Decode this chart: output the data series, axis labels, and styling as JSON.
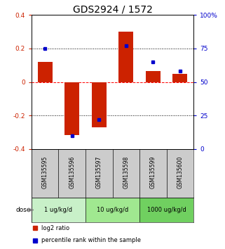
{
  "title": "GDS2924 / 1572",
  "samples": [
    "GSM135595",
    "GSM135596",
    "GSM135597",
    "GSM135598",
    "GSM135599",
    "GSM135600"
  ],
  "log2_ratio": [
    0.12,
    -0.315,
    -0.27,
    0.3,
    0.065,
    0.05
  ],
  "percentile_rank": [
    75,
    10,
    22,
    77,
    65,
    58
  ],
  "dose_groups": [
    {
      "label": "1 ug/kg/d",
      "start": 0,
      "end": 2,
      "color": "#c8f0c8"
    },
    {
      "label": "10 ug/kg/d",
      "start": 2,
      "end": 4,
      "color": "#a0e890"
    },
    {
      "label": "1000 ug/kg/d",
      "start": 4,
      "end": 6,
      "color": "#70d060"
    }
  ],
  "ylim_left": [
    -0.4,
    0.4
  ],
  "ylim_right": [
    0,
    100
  ],
  "bar_color": "#cc2200",
  "dot_color": "#0000cc",
  "title_fontsize": 10,
  "tick_fontsize": 6.5,
  "label_fontsize": 6,
  "bar_width": 0.55,
  "sample_box_color": "#cccccc",
  "legend_markersize": 5
}
